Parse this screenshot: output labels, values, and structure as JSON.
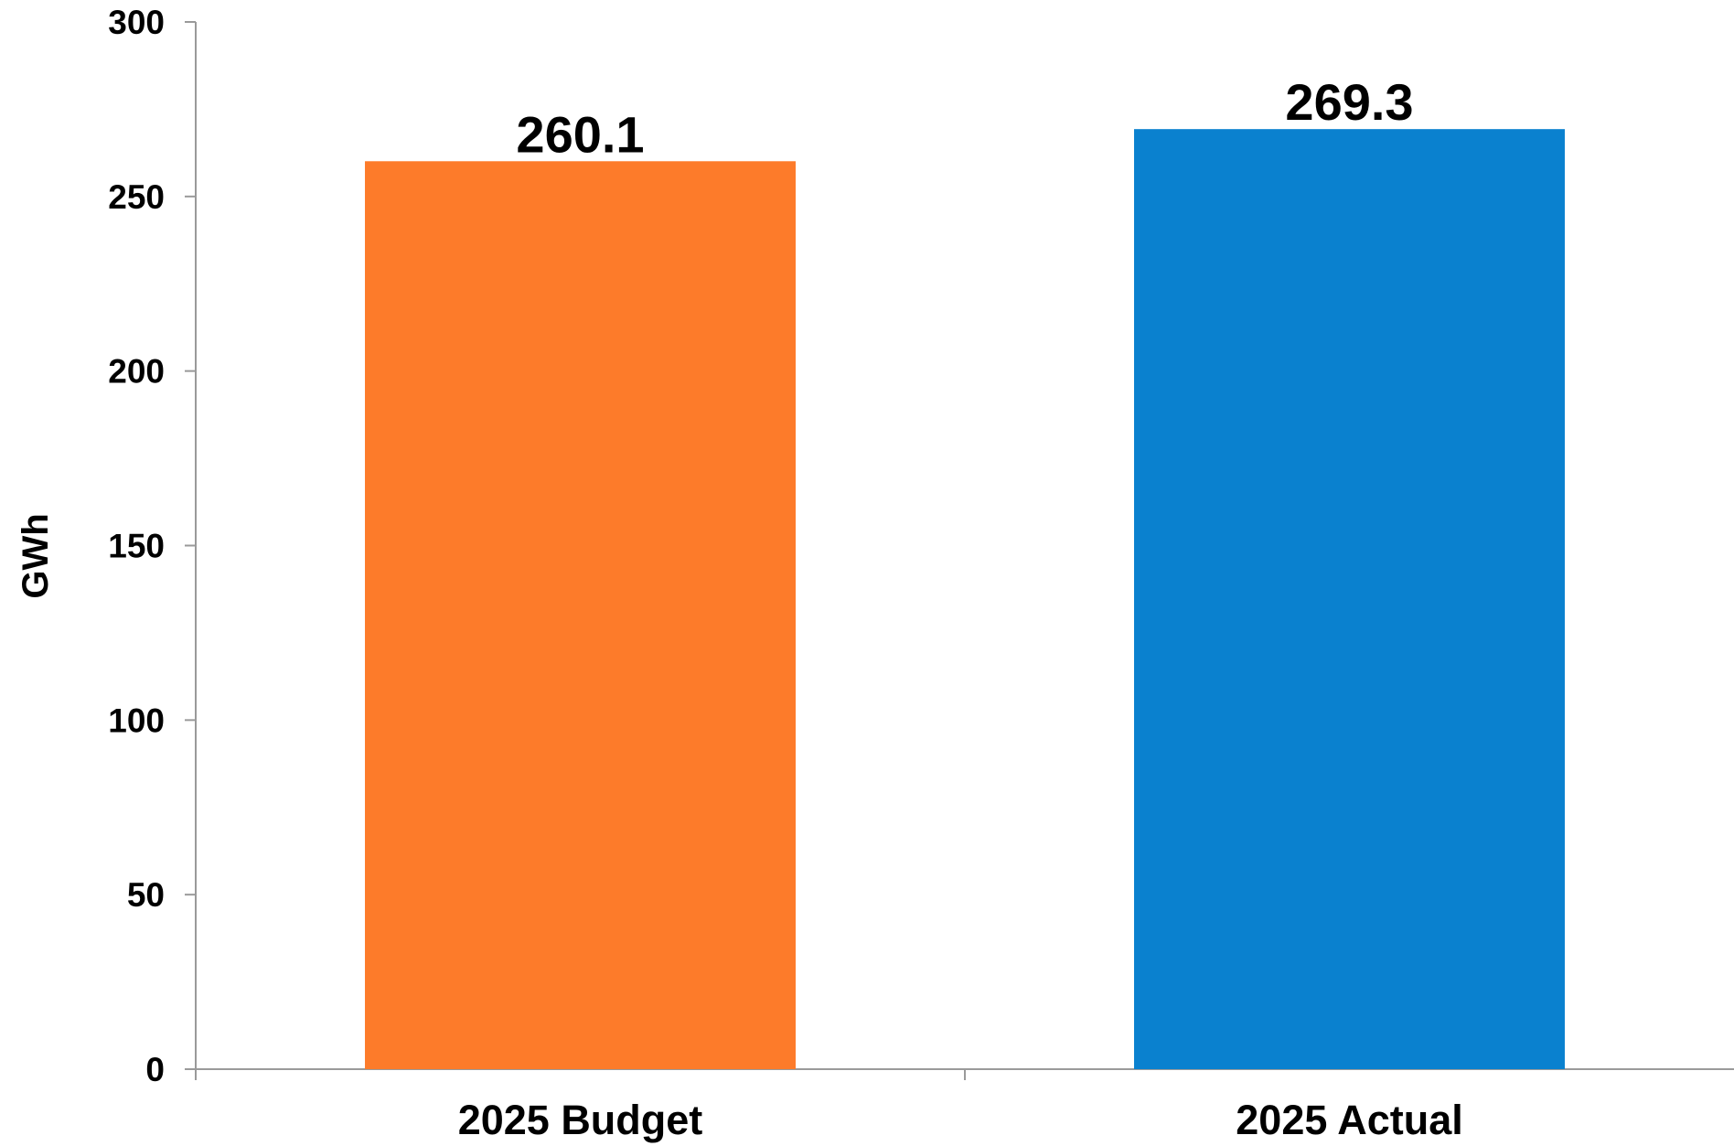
{
  "chart_data": {
    "type": "bar",
    "categories": [
      "2025 Budget",
      "2025 Actual"
    ],
    "values": [
      260.1,
      269.3
    ],
    "data_labels": [
      "260.1",
      "269.3"
    ],
    "colors": [
      "#FD7B2A",
      "#0A81CF"
    ],
    "ylabel": "GWh",
    "ylim": [
      0,
      300
    ],
    "yticks": [
      0,
      50,
      100,
      150,
      200,
      250,
      300
    ],
    "grid": false,
    "legend": "none"
  }
}
